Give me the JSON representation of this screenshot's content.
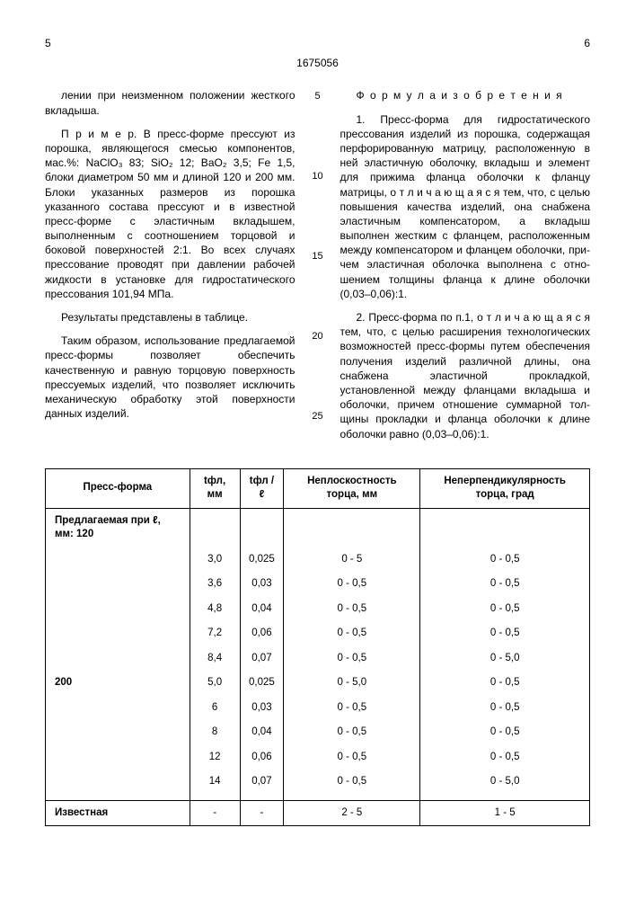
{
  "pageLeft": "5",
  "docId": "1675056",
  "pageRight": "6",
  "leftColumn": {
    "p1": "лении при неизменном положении жестко­го вкладыша.",
    "p2": "П р и м е р. В пресс-форме прессуют из порошка, являющегося смесью компонен­тов, мас.%: NaClO₃ 83; SiO₂ 12; BaO₂ 3,5; Fe 1,5, блоки диаметром 50 мм и длиной 120 и 200 мм. Блоки указанных размеров из по­рошка указанного состава прессуют и в из­вестной пресс-форме с эластичным вкладышем, выполненным с соотношением торцовой и боковой поверхностей 2:1. Во всех случаях прессование проводят при давлении рабочей жидкости в установке для гидростатического прессования 101,94 МПа.",
    "p3": "Результаты представлены в таблице.",
    "p4": "Таким образом, использование предла­гаемой пресс-формы позволяет обеспечить качественную и равную торцовую поверх­ность прессуемых изделий, что позволяет исключить механическую обработку этой поверхности данных изделий."
  },
  "rightColumn": {
    "heading": "Ф о р м у л а  и з о б р е т е н и я",
    "p1": "1. Пресс-форма для гидростатического прессования изделий из порошка, содержа­щая перфорированную матрицу, располо­женную в ней эластичную оболочку, вкладыш и элемент для прижима фланца оболочки к фланцу матрицы, о т л и ч а ю­ щ а я с я  тем, что, с целью повышения качества изделий, она снабжена эластич­ным компенсатором, а вкладыш выполнен жестким с фланцем, расположенным между компенсатором и фланцем оболочки, при­чем эластичная оболочка выполнена с отно­шением толщины фланца к длине оболочки (0,03–0,06):1.",
    "p2": "2. Пресс-форма по п.1, о т л и ч а ю щ а я­ с я  тем, что, с целью расширения технологи­ческих возможностей пресс-формы путем обеспечения получения изделий различной длины, она снабжена эластичной прокладкой, установленной между фланцами вкладыша и оболочки, причем отношение суммарной тол­щины прокладки и фланца оболочки к длине оболочки равно (0,03–0,06):1."
  },
  "lineNumbers": [
    "5",
    "10",
    "15",
    "20",
    "25"
  ],
  "table": {
    "headers": [
      "Пресс-форма",
      "tфл, мм",
      "tфл /ℓ",
      "Неплоскост­ность торца, мм",
      "Неперпендику­лярность торца, град"
    ],
    "group1Label": "Предлагаемая при ℓ, мм: 120",
    "group2Label": "200",
    "rows1": [
      [
        "3,0",
        "0,025",
        "0 - 5",
        "0 - 0,5"
      ],
      [
        "3,6",
        "0,03",
        "0 - 0,5",
        "0 - 0,5"
      ],
      [
        "4,8",
        "0,04",
        "0 - 0,5",
        "0 - 0,5"
      ],
      [
        "7,2",
        "0,06",
        "0 - 0,5",
        "0 - 0,5"
      ],
      [
        "8,4",
        "0,07",
        "0 - 0,5",
        "0 - 5,0"
      ]
    ],
    "rows2": [
      [
        "5,0",
        "0,025",
        "0 - 5,0",
        "0 - 0,5"
      ],
      [
        "6",
        "0,03",
        "0 - 0,5",
        "0 - 0,5"
      ],
      [
        "8",
        "0,04",
        "0 - 0,5",
        "0 - 0,5"
      ],
      [
        "12",
        "0,06",
        "0 - 0,5",
        "0 - 0,5"
      ],
      [
        "14",
        "0,07",
        "0 - 0,5",
        "0 - 5,0"
      ]
    ],
    "knownRow": [
      "Известная",
      "-",
      "-",
      "2 - 5",
      "1 - 5"
    ]
  }
}
